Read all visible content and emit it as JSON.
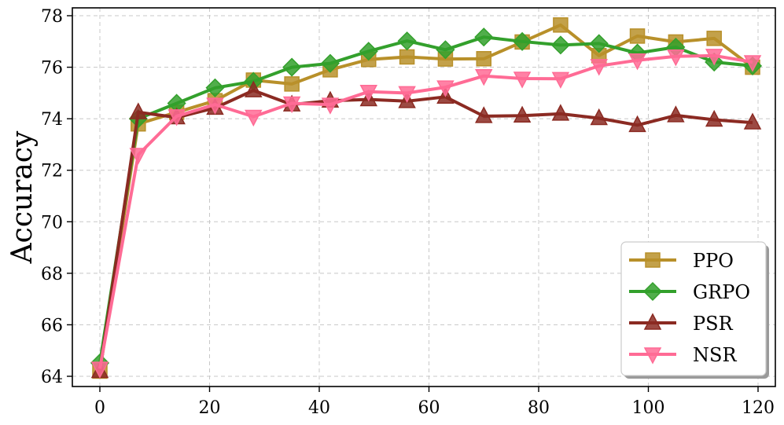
{
  "chart_data": {
    "type": "line",
    "title": "",
    "xlabel": "",
    "ylabel": "Accuracy",
    "xlim": [
      -5,
      123
    ],
    "ylim": [
      63.6,
      78.3
    ],
    "xticks": [
      0,
      20,
      40,
      60,
      80,
      100,
      120
    ],
    "yticks": [
      64,
      66,
      68,
      70,
      72,
      74,
      76,
      78
    ],
    "grid": true,
    "legend_position": "lower right",
    "x": [
      0,
      7,
      14,
      21,
      28,
      35,
      42,
      49,
      56,
      63,
      70,
      77,
      84,
      91,
      98,
      105,
      112,
      119
    ],
    "series": [
      {
        "name": "PPO",
        "marker": "square",
        "color": "#B8902A",
        "values": [
          64.2,
          73.8,
          74.25,
          74.7,
          75.5,
          75.35,
          75.9,
          76.3,
          76.4,
          76.32,
          76.33,
          76.98,
          77.64,
          76.45,
          77.21,
          76.98,
          77.12,
          76.0
        ]
      },
      {
        "name": "GRPO",
        "marker": "diamond",
        "color": "#33A02C",
        "values": [
          64.52,
          74.0,
          74.6,
          75.2,
          75.45,
          76.0,
          76.15,
          76.62,
          77.02,
          76.68,
          77.17,
          77.0,
          76.86,
          76.92,
          76.55,
          76.78,
          76.2,
          76.05
        ]
      },
      {
        "name": "PSR",
        "marker": "triangle-up",
        "color": "#8B2A22",
        "values": [
          64.2,
          74.25,
          74.05,
          74.42,
          75.1,
          74.55,
          74.7,
          74.75,
          74.68,
          74.85,
          74.1,
          74.12,
          74.19,
          74.02,
          73.75,
          74.13,
          73.96,
          73.85
        ]
      },
      {
        "name": "NSR",
        "marker": "triangle-down",
        "color": "#FF6B95",
        "values": [
          64.3,
          72.6,
          74.1,
          74.55,
          74.08,
          74.6,
          74.55,
          75.05,
          75.0,
          75.22,
          75.66,
          75.56,
          75.55,
          76.05,
          76.27,
          76.42,
          76.45,
          76.2
        ]
      }
    ]
  }
}
